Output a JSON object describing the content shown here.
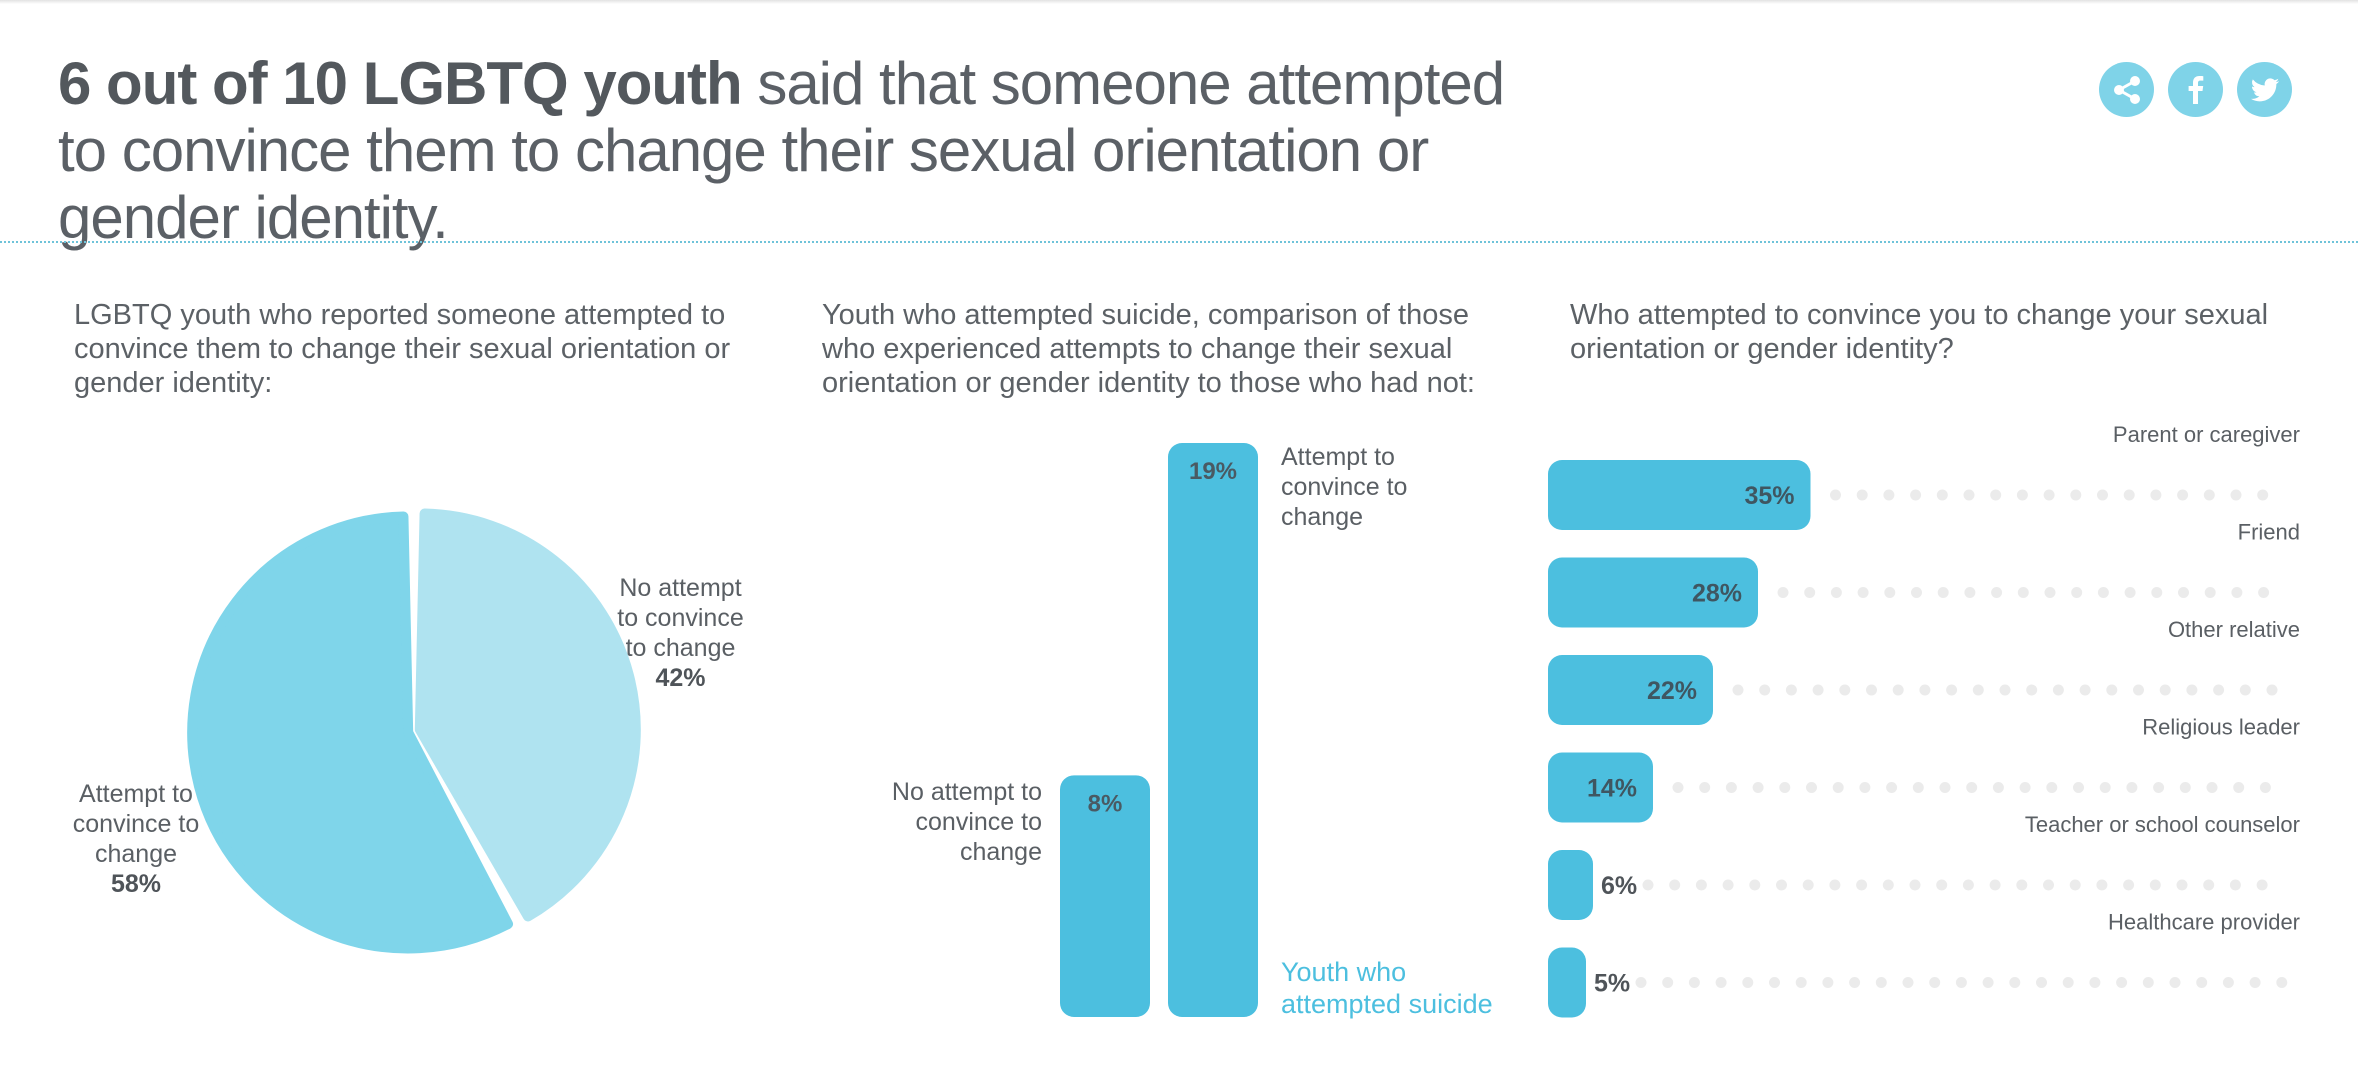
{
  "headline": {
    "bold": "6 out of 10 LGBTQ youth",
    "rest": "said that someone attempted to convince them to change their sexual orientation or gender identity."
  },
  "social": [
    {
      "name": "share-icon",
      "label": "share"
    },
    {
      "name": "facebook-icon",
      "label": "f"
    },
    {
      "name": "twitter-icon",
      "label": "twitter"
    }
  ],
  "colors": {
    "bar": "#4cbfdf",
    "pie_major": "#7fd5ea",
    "pie_minor": "#afe3f0",
    "dots": "#ebebeb",
    "accent_text": "#4cbfdf"
  },
  "panel1": {
    "subtitle": "LGBTQ youth who reported someone attempted to convince them to change their sexual orientation or gender identity:",
    "attempt_label": "Attempt to convince to change",
    "attempt_pct": "58%",
    "no_attempt_label": "No attempt to convince to change",
    "no_attempt_pct": "42%"
  },
  "panel2": {
    "subtitle": "Youth who attempted suicide, comparison of those who experienced attempts to change their sexual orientation or gender identity to those who had not:",
    "no_attempt_label": "No attempt to convince to change",
    "attempt_label": "Attempt to convince to change",
    "legend": "Youth who attempted suicide"
  },
  "panel3": {
    "subtitle": "Who attempted to convince you to change your sexual orientation or gender identity?"
  },
  "chart_data": [
    {
      "type": "pie",
      "title": "LGBTQ youth who reported someone attempted to convince them to change their sexual orientation or gender identity:",
      "categories": [
        "Attempt to convince to change",
        "No attempt to convince to change"
      ],
      "values": [
        58,
        42
      ],
      "labels": [
        "58%",
        "42%"
      ]
    },
    {
      "type": "bar",
      "title": "Youth who attempted suicide, comparison of those who experienced attempts to change their sexual orientation or gender identity to those who had not:",
      "categories": [
        "No attempt to convince to change",
        "Attempt to convince to change"
      ],
      "series": [
        {
          "name": "Youth who attempted suicide",
          "values": [
            8,
            19
          ]
        }
      ],
      "labels": [
        "8%",
        "19%"
      ],
      "ylim": [
        0,
        19
      ]
    },
    {
      "type": "bar",
      "orientation": "horizontal",
      "title": "Who attempted to convince you to change your sexual orientation or gender identity?",
      "categories": [
        "Parent or caregiver",
        "Friend",
        "Other relative",
        "Religious leader",
        "Teacher or school counselor",
        "Healthcare provider"
      ],
      "values": [
        35,
        28,
        22,
        14,
        6,
        5
      ],
      "labels": [
        "35%",
        "28%",
        "22%",
        "14%",
        "6%",
        "5%"
      ],
      "xlim": [
        0,
        100
      ]
    }
  ]
}
